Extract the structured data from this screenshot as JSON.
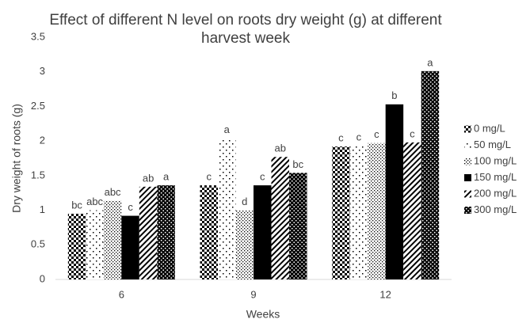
{
  "chart_data": {
    "type": "bar",
    "title": "Effect of different N level on roots dry weight (g) at different harvest week",
    "xlabel": "Weeks",
    "ylabel": "Dry weight of roots (g)",
    "categories": [
      "6",
      "9",
      "12"
    ],
    "ylim": [
      0,
      3.5
    ],
    "yticks": [
      0,
      0.5,
      1,
      1.5,
      2,
      2.5,
      3,
      3.5
    ],
    "grid": false,
    "legend": "right",
    "series": [
      {
        "name": "0 mg/L",
        "color": "#000000",
        "pattern": "checker",
        "values": [
          0.95,
          1.36,
          1.92
        ],
        "letters": [
          "bc",
          "c",
          "c"
        ]
      },
      {
        "name": "50 mg/L",
        "color": "#000000",
        "pattern": "sparse-dots",
        "values": [
          1.0,
          2.04,
          1.93
        ],
        "letters": [
          "abc",
          "a",
          "c"
        ]
      },
      {
        "name": "100 mg/L",
        "color": "#000000",
        "pattern": "fine-dots",
        "values": [
          1.14,
          1.0,
          1.97
        ],
        "letters": [
          "abc",
          "d",
          "c"
        ]
      },
      {
        "name": "150 mg/L",
        "color": "#000000",
        "pattern": "solid",
        "values": [
          0.92,
          1.36,
          2.53
        ],
        "letters": [
          "c",
          "c",
          "b"
        ]
      },
      {
        "name": "200 mg/L",
        "color": "#000000",
        "pattern": "diagonal",
        "values": [
          1.34,
          1.77,
          1.98
        ],
        "letters": [
          "ab",
          "ab",
          "c"
        ]
      },
      {
        "name": "300 mg/L",
        "color": "#000000",
        "pattern": "dense-dots",
        "values": [
          1.36,
          1.54,
          3.01
        ],
        "letters": [
          "a",
          "bc",
          "a"
        ]
      }
    ]
  }
}
